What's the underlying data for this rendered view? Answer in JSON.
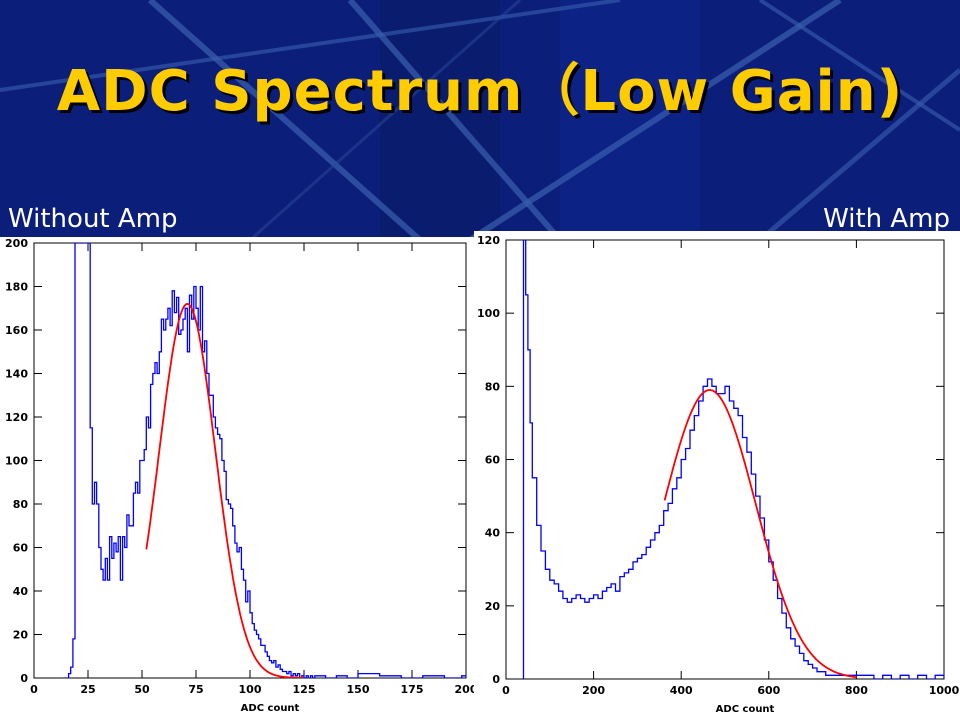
{
  "slide": {
    "title": "ADC Spectrum（Low Gain)",
    "left_label": "Without Amp",
    "right_label": "With Amp"
  },
  "colors": {
    "background": "#0b1f7a",
    "title": "#ffcc00",
    "histogram": "#0000ff",
    "fit": "#ff0000"
  },
  "chart_data": [
    {
      "type": "line",
      "style": "histogram-with-gaussian-fit",
      "title": "",
      "xlabel": "ADC count",
      "ylabel": "",
      "xlim": [
        0,
        200
      ],
      "ylim": [
        0,
        200
      ],
      "xticks": [
        0,
        25,
        50,
        75,
        100,
        125,
        150,
        175,
        200
      ],
      "yticks": [
        0,
        20,
        40,
        60,
        80,
        100,
        120,
        140,
        160,
        180,
        200
      ],
      "grid": false,
      "series": [
        {
          "kind": "histogram",
          "color": "#0000ff",
          "x": [
            14,
            16,
            17,
            18,
            19,
            20,
            21,
            22,
            23,
            24,
            25,
            26,
            27,
            28,
            29,
            30,
            31,
            32,
            33,
            34,
            35,
            36,
            37,
            38,
            39,
            40,
            41,
            42,
            43,
            44,
            45,
            46,
            47,
            48,
            49,
            50,
            51,
            52,
            53,
            54,
            55,
            56,
            57,
            58,
            59,
            60,
            61,
            62,
            63,
            64,
            65,
            66,
            67,
            68,
            69,
            70,
            71,
            72,
            73,
            74,
            75,
            76,
            77,
            78,
            79,
            80,
            81,
            82,
            83,
            84,
            85,
            86,
            87,
            88,
            89,
            90,
            91,
            92,
            93,
            94,
            95,
            96,
            97,
            98,
            99,
            100,
            101,
            102,
            103,
            104,
            105,
            106,
            107,
            108,
            109,
            110,
            111,
            112,
            113,
            114,
            115,
            116,
            117,
            118,
            119,
            120,
            121,
            122,
            123,
            124,
            125,
            126,
            127,
            128,
            129,
            130,
            135,
            140,
            145,
            150,
            160,
            170,
            180,
            190,
            198
          ],
          "y": [
            0,
            2,
            5,
            18,
            200,
            200,
            200,
            200,
            200,
            200,
            200,
            115,
            80,
            90,
            80,
            60,
            50,
            45,
            55,
            45,
            65,
            55,
            62,
            58,
            65,
            45,
            65,
            60,
            75,
            70,
            70,
            85,
            90,
            85,
            100,
            100,
            105,
            120,
            115,
            135,
            140,
            145,
            140,
            150,
            165,
            160,
            165,
            170,
            162,
            178,
            168,
            175,
            158,
            160,
            165,
            170,
            150,
            176,
            165,
            180,
            170,
            160,
            180,
            150,
            155,
            140,
            130,
            130,
            120,
            115,
            112,
            110,
            100,
            95,
            82,
            80,
            78,
            70,
            62,
            58,
            60,
            50,
            45,
            35,
            40,
            30,
            25,
            22,
            20,
            18,
            15,
            15,
            12,
            10,
            8,
            7,
            8,
            5,
            6,
            4,
            3,
            3,
            2,
            3,
            1,
            2,
            1,
            2,
            0,
            1,
            0,
            1,
            0,
            1,
            0,
            1,
            0,
            1,
            0,
            2,
            1,
            0,
            1,
            0,
            1
          ]
        },
        {
          "kind": "gaussian-fit",
          "color": "#ff0000",
          "amplitude": 172,
          "mean": 71,
          "sigma": 13,
          "x_range": [
            52,
            125
          ]
        }
      ]
    },
    {
      "type": "line",
      "style": "histogram-with-gaussian-fit",
      "title": "",
      "xlabel": "ADC count",
      "ylabel": "",
      "xlim": [
        0,
        1000
      ],
      "ylim": [
        0,
        120
      ],
      "xticks": [
        0,
        200,
        400,
        600,
        800,
        1000
      ],
      "yticks": [
        0,
        20,
        40,
        60,
        80,
        100,
        120
      ],
      "grid": false,
      "series": [
        {
          "kind": "histogram",
          "color": "#0000ff",
          "x": [
            40,
            45,
            50,
            55,
            60,
            70,
            80,
            90,
            100,
            110,
            120,
            130,
            140,
            150,
            160,
            170,
            180,
            190,
            200,
            210,
            220,
            230,
            240,
            250,
            260,
            270,
            280,
            290,
            300,
            310,
            320,
            330,
            340,
            350,
            360,
            370,
            380,
            390,
            400,
            410,
            420,
            430,
            440,
            450,
            460,
            470,
            480,
            490,
            500,
            510,
            520,
            530,
            540,
            550,
            560,
            570,
            580,
            590,
            600,
            610,
            620,
            630,
            640,
            650,
            660,
            670,
            680,
            690,
            700,
            710,
            720,
            730,
            740,
            750,
            760,
            770,
            780,
            790,
            800,
            820,
            840,
            860,
            880,
            900,
            920,
            940,
            960,
            980,
            1000
          ],
          "y": [
            120,
            105,
            90,
            70,
            55,
            42,
            35,
            30,
            27,
            26,
            24,
            22,
            21,
            22,
            23,
            22,
            21,
            22,
            23,
            22,
            24,
            25,
            26,
            24,
            28,
            29,
            30,
            32,
            33,
            34,
            36,
            38,
            40,
            42,
            46,
            48,
            52,
            55,
            60,
            63,
            68,
            72,
            76,
            80,
            82,
            80,
            78,
            78,
            80,
            76,
            74,
            72,
            66,
            62,
            56,
            50,
            44,
            38,
            32,
            27,
            22,
            18,
            14,
            11,
            9,
            7,
            5,
            4,
            3,
            2,
            2,
            1,
            1,
            1,
            1,
            1,
            1,
            1,
            1,
            1,
            0,
            1,
            0,
            1,
            0,
            1,
            0,
            1,
            0
          ]
        },
        {
          "kind": "gaussian-fit",
          "color": "#ff0000",
          "amplitude": 79,
          "mean": 465,
          "sigma": 105,
          "x_range": [
            362,
            800
          ]
        }
      ]
    }
  ]
}
